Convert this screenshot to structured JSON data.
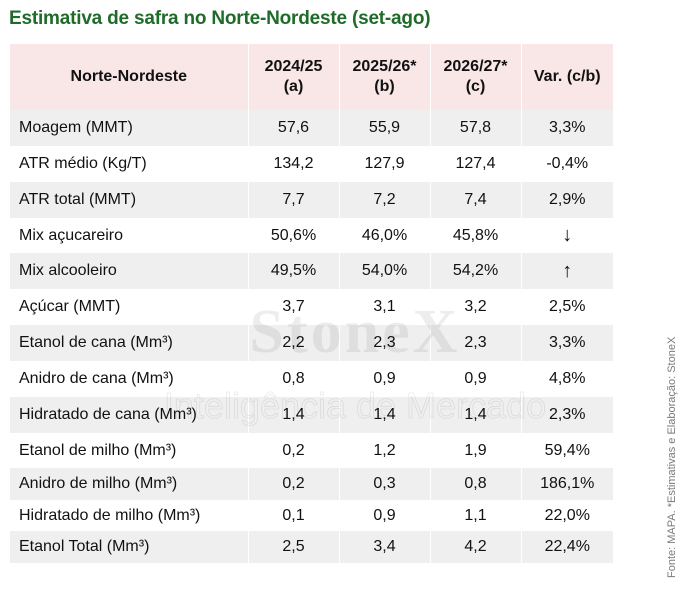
{
  "title": "Estimativa de safra no Norte-Nordeste (set-ago)",
  "table": {
    "headers": [
      {
        "line1": "Norte-Nordeste",
        "line2": ""
      },
      {
        "line1": "2024/25",
        "line2": "(a)"
      },
      {
        "line1": "2025/26*",
        "line2": "(b)"
      },
      {
        "line1": "2026/27*",
        "line2": "(c)"
      },
      {
        "line1": "Var.  (c/b)",
        "line2": ""
      }
    ],
    "rows": [
      {
        "label": "Moagem (MMT)",
        "a": "57,6",
        "b": "55,9",
        "c": "57,8",
        "var": "3,3%"
      },
      {
        "label": "ATR médio (Kg/T)",
        "a": "134,2",
        "b": "127,9",
        "c": "127,4",
        "var": "-0,4%"
      },
      {
        "label": "ATR total (MMT)",
        "a": "7,7",
        "b": "7,2",
        "c": "7,4",
        "var": "2,9%"
      },
      {
        "label": "Mix açucareiro",
        "a": "50,6%",
        "b": "46,0%",
        "c": "45,8%",
        "var": "↓"
      },
      {
        "label": "Mix alcooleiro",
        "a": "49,5%",
        "b": "54,0%",
        "c": "54,2%",
        "var": "↑"
      },
      {
        "label": "Açúcar (MMT)",
        "a": "3,7",
        "b": "3,1",
        "c": "3,2",
        "var": "2,5%"
      },
      {
        "label": "Etanol de cana (Mm³)",
        "a": "2,2",
        "b": "2,3",
        "c": "2,3",
        "var": "3,3%"
      },
      {
        "label": "Anidro de cana (Mm³)",
        "a": "0,8",
        "b": "0,9",
        "c": "0,9",
        "var": "4,8%"
      },
      {
        "label": "Hidratado de cana (Mm³)",
        "a": "1,4",
        "b": "1,4",
        "c": "1,4",
        "var": "2,3%"
      },
      {
        "label": "Etanol de milho (Mm³)",
        "a": "0,2",
        "b": "1,2",
        "c": "1,9",
        "var": "59,4%"
      },
      {
        "label": "Anidro de milho (Mm³)",
        "a": "0,2",
        "b": "0,3",
        "c": "0,8",
        "var": "186,1%"
      },
      {
        "label": "Hidratado de milho (Mm³)",
        "a": "0,1",
        "b": "0,9",
        "c": "1,1",
        "var": "22,0%"
      },
      {
        "label": "Etanol Total (Mm³)",
        "a": "2,5",
        "b": "3,4",
        "c": "4,2",
        "var": "22,4%"
      }
    ]
  },
  "watermark": {
    "brand": "StoneX",
    "tagline": "Inteligência de Mercado"
  },
  "source": "Fonte: MAPA. *Estimativas e Elaboração: StoneX",
  "colors": {
    "title": "#1f6b2a",
    "header_bg": "#f9e6e6",
    "stripe": "#efefef"
  }
}
